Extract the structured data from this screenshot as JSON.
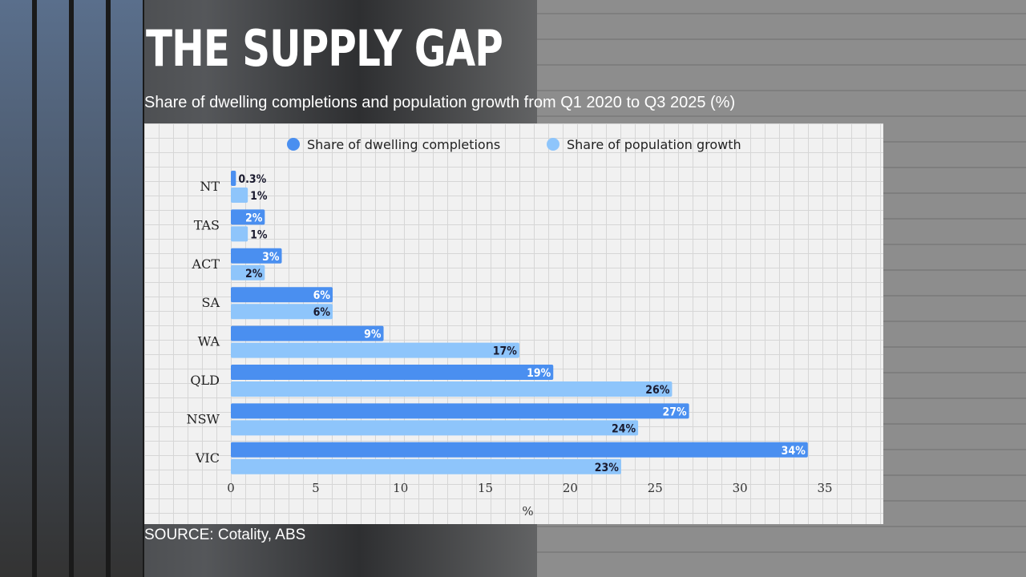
{
  "header": {
    "title": "THE SUPPLY GAP",
    "subtitle": "Share of dwelling completions and population growth from Q1 2020 to Q3 2025 (%)"
  },
  "footer": {
    "source": "SOURCE: Cotality, ABS"
  },
  "chart_data": {
    "type": "bar",
    "orientation": "horizontal",
    "title": "THE SUPPLY GAP",
    "subtitle": "Share of dwelling completions and population growth from Q1 2020 to Q3 2025 (%)",
    "xlabel": "%",
    "ylabel": "",
    "xlim": [
      0,
      35
    ],
    "xticks": [
      0,
      5,
      10,
      15,
      20,
      25,
      30,
      35
    ],
    "grid": false,
    "legend": "top",
    "categories": [
      "NT",
      "TAS",
      "ACT",
      "SA",
      "WA",
      "QLD",
      "NSW",
      "VIC"
    ],
    "series": [
      {
        "name": "Share of dwelling completions",
        "color": "#4a8ff0",
        "values": [
          0.3,
          2,
          3,
          6,
          9,
          19,
          27,
          34
        ],
        "labels": [
          "0.3%",
          "2%",
          "3%",
          "6%",
          "9%",
          "19%",
          "27%",
          "34%"
        ]
      },
      {
        "name": "Share of population growth",
        "color": "#8ec5fb",
        "values": [
          1,
          1,
          2,
          6,
          17,
          26,
          24,
          23
        ],
        "labels": [
          "1%",
          "1%",
          "2%",
          "6%",
          "17%",
          "26%",
          "24%",
          "23%"
        ]
      }
    ]
  }
}
